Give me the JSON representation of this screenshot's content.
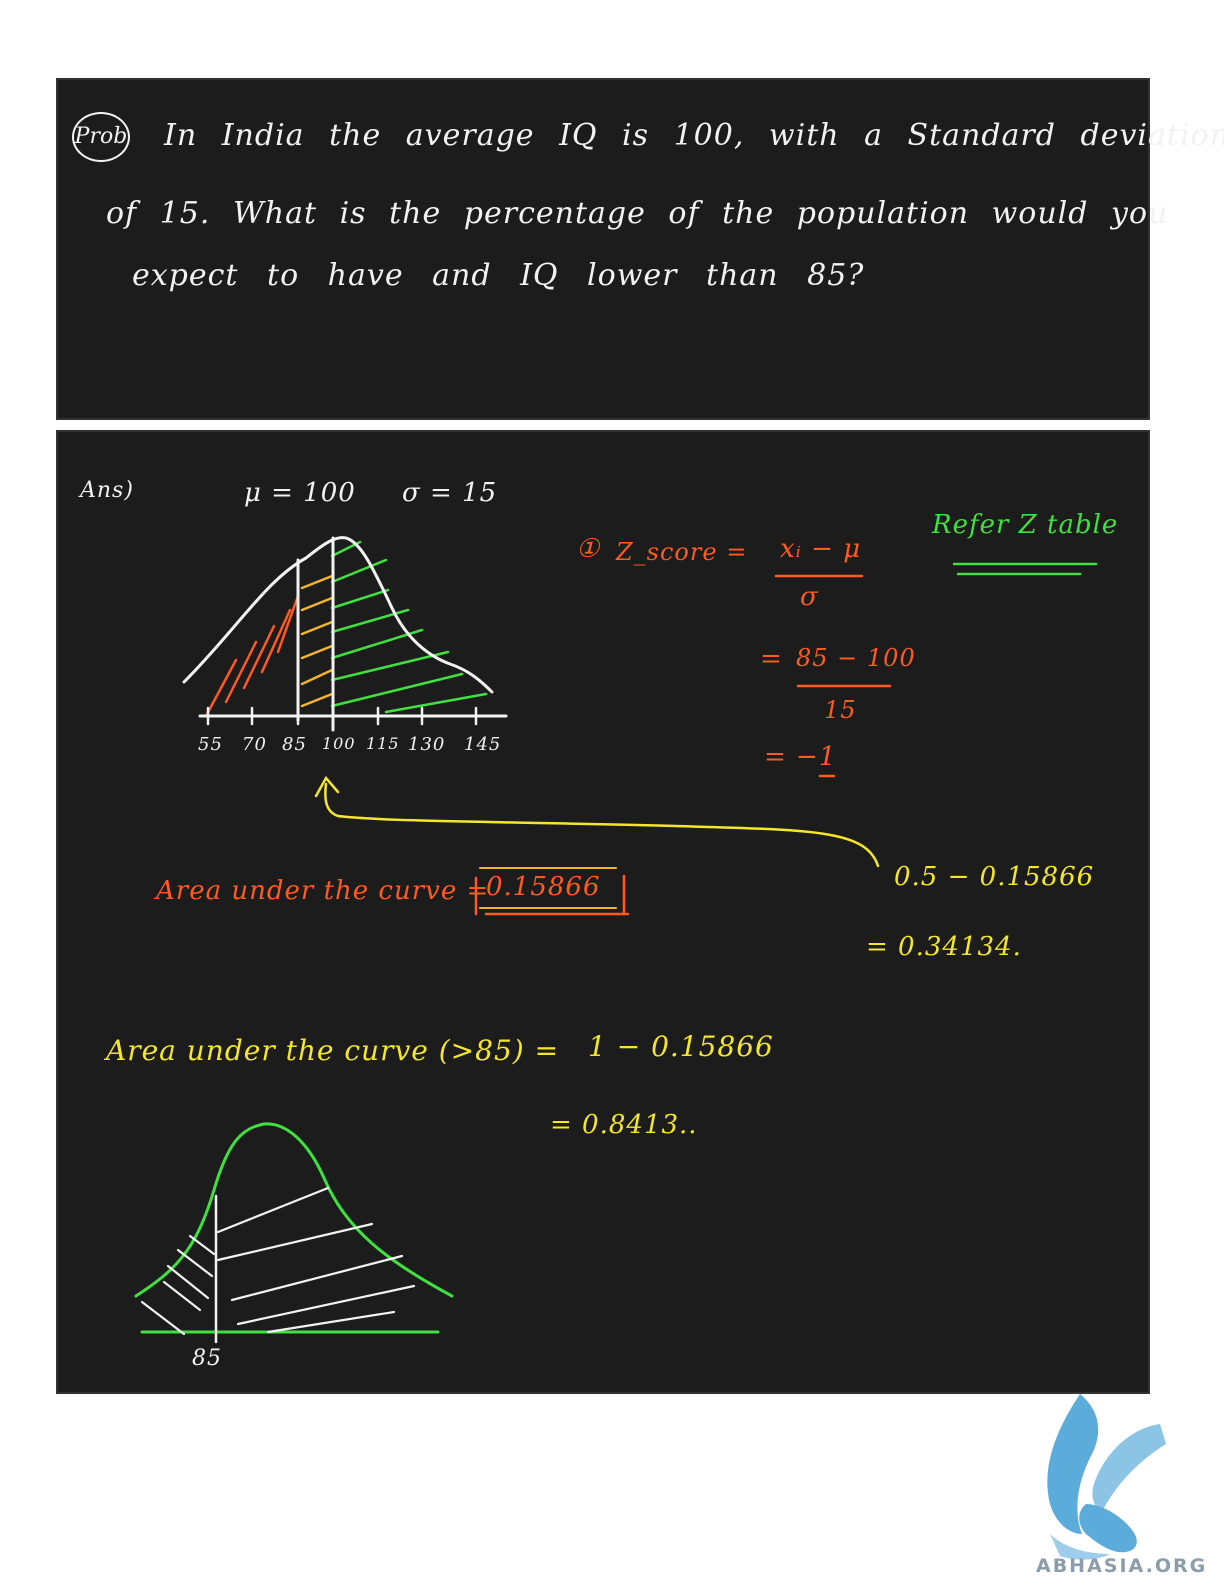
{
  "problem": {
    "badge": "Prob",
    "line1": "In India the average IQ is 100, with a Standard deviation",
    "line2": "of 15. What is the percentage of the population would you",
    "line3": "expect to have and IQ lower than 85?"
  },
  "answer": {
    "label": "Ans)",
    "mu": "μ = 100",
    "sigma": "σ = 15",
    "ztable_note": "Refer Z table",
    "step_number": "①",
    "zscore_label": "Z_score =",
    "zscore_numerator": "xᵢ − μ",
    "zscore_denominator": "σ",
    "eq_sign": "=",
    "sub_numerator": "85 − 100",
    "sub_denominator": "15",
    "result": "= −1",
    "axis_ticks": [
      "55",
      "70",
      "85",
      "100",
      "115",
      "130",
      "145"
    ],
    "area_label": "Area under the curve =",
    "area_value": "0.15866",
    "calc_line1": "0.5 − 0.15866",
    "calc_line2": "= 0.34134.",
    "area_gt_label": "Area under the curve (>85) =",
    "area_gt_expr": "1 − 0.15866",
    "area_gt_result": "= 0.8413..",
    "bottom_tick": "85"
  },
  "logo": {
    "text": "ABHASIA.ORG",
    "name": "abhasia-griffin-logo"
  },
  "colors": {
    "board": "#1c1c1c",
    "white_ink": "#f2f2f2",
    "orange_ink": "#ff5a1f",
    "yellow_ink": "#f4e62a",
    "green_ink": "#3fe040",
    "logo_blue": "#4aa3d8"
  }
}
